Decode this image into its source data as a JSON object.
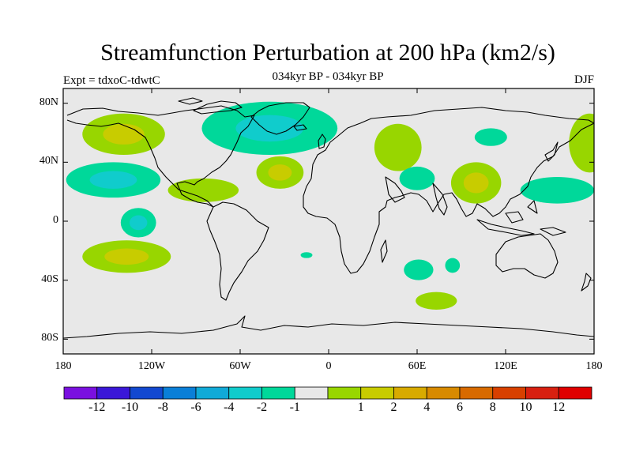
{
  "title": "Streamfunction Perturbation at 200 hPa (km2/s)",
  "subtitle": "034kyr BP - 034kyr BP",
  "left_label": "Expt = tdxoC-tdwtC",
  "right_label": "DJF",
  "map": {
    "projection": "cylindrical equidistant",
    "lon_range": [
      -180,
      180
    ],
    "lat_range": [
      -90,
      90
    ],
    "background": "#e8e8e8",
    "lat_ticks": [
      {
        "value": 80,
        "label": "80N"
      },
      {
        "value": 40,
        "label": "40N"
      },
      {
        "value": 0,
        "label": "0"
      },
      {
        "value": -40,
        "label": "40S"
      },
      {
        "value": -80,
        "label": "80S"
      }
    ],
    "lon_ticks": [
      {
        "value": -180,
        "label": "180"
      },
      {
        "value": -120,
        "label": "120W"
      },
      {
        "value": -60,
        "label": "60W"
      },
      {
        "value": 0,
        "label": "0"
      },
      {
        "value": 60,
        "label": "60E"
      },
      {
        "value": 120,
        "label": "120E"
      },
      {
        "value": 180,
        "label": "180"
      }
    ]
  },
  "colorbar": {
    "colors": [
      "#7a10e0",
      "#3a17d8",
      "#1248d0",
      "#0a7fd8",
      "#10aad8",
      "#10cccc",
      "#00d89a",
      "#e8e8e8",
      "#98d600",
      "#c8cc00",
      "#d8aa00",
      "#d88a00",
      "#d86a00",
      "#d84000",
      "#d82010",
      "#e00000"
    ],
    "labels": [
      "-12",
      "-10",
      "-8",
      "-6",
      "-4",
      "-2",
      "-1",
      "1",
      "2",
      "4",
      "6",
      "8",
      "10",
      "12"
    ]
  },
  "anomalies": [
    {
      "name": "north-pacific-positive",
      "lon": -139,
      "lat": 59,
      "rx": 28,
      "ry": 14,
      "levels": [
        2,
        4
      ]
    },
    {
      "name": "north-pacific-negative",
      "lon": -146,
      "lat": 28,
      "rx": 32,
      "ry": 12,
      "levels": [
        -1,
        -2
      ]
    },
    {
      "name": "north-atlantic-negative",
      "lon": -40,
      "lat": 63,
      "rx": 46,
      "ry": 18,
      "levels": [
        -1,
        -2
      ]
    },
    {
      "name": "subtropical-atlantic-positive",
      "lon": -33,
      "lat": 33,
      "rx": 16,
      "ry": 11,
      "levels": [
        2,
        4
      ]
    },
    {
      "name": "caribbean-positive",
      "lon": -85,
      "lat": 21,
      "rx": 24,
      "ry": 8,
      "levels": [
        2
      ]
    },
    {
      "name": "eastern-pacific-negative",
      "lon": -129,
      "lat": -1,
      "rx": 12,
      "ry": 10,
      "levels": [
        -1,
        -2
      ]
    },
    {
      "name": "south-pacific-positive",
      "lon": -137,
      "lat": -24,
      "rx": 30,
      "ry": 11,
      "levels": [
        2,
        4
      ]
    },
    {
      "name": "middle-east-positive",
      "lon": 47,
      "lat": 50,
      "rx": 16,
      "ry": 16,
      "levels": [
        2
      ]
    },
    {
      "name": "arabia-negative",
      "lon": 60,
      "lat": 29,
      "rx": 12,
      "ry": 8,
      "levels": [
        -1
      ]
    },
    {
      "name": "siberia-negative",
      "lon": 110,
      "lat": 57,
      "rx": 11,
      "ry": 6,
      "levels": [
        -1
      ]
    },
    {
      "name": "tibet-positive",
      "lon": 100,
      "lat": 26,
      "rx": 17,
      "ry": 14,
      "levels": [
        2,
        4
      ]
    },
    {
      "name": "west-pacific-negative",
      "lon": 155,
      "lat": 21,
      "rx": 25,
      "ry": 9,
      "levels": [
        -1
      ]
    },
    {
      "name": "north-pacific-dateline-positive",
      "lon": 177,
      "lat": 53,
      "rx": 14,
      "ry": 20,
      "levels": [
        2
      ]
    },
    {
      "name": "indian-ocean-negative",
      "lon": 61,
      "lat": -33,
      "rx": 10,
      "ry": 7,
      "levels": [
        -1
      ]
    },
    {
      "name": "southern-indian-positive",
      "lon": 73,
      "lat": -54,
      "rx": 14,
      "ry": 6,
      "levels": [
        2
      ]
    },
    {
      "name": "south-australia-negative",
      "lon": 84,
      "lat": -30,
      "rx": 5,
      "ry": 5,
      "levels": [
        -1
      ]
    },
    {
      "name": "south-atlantic-negative",
      "lon": -15,
      "lat": -23,
      "rx": 4,
      "ry": 2,
      "levels": [
        -1
      ]
    }
  ]
}
